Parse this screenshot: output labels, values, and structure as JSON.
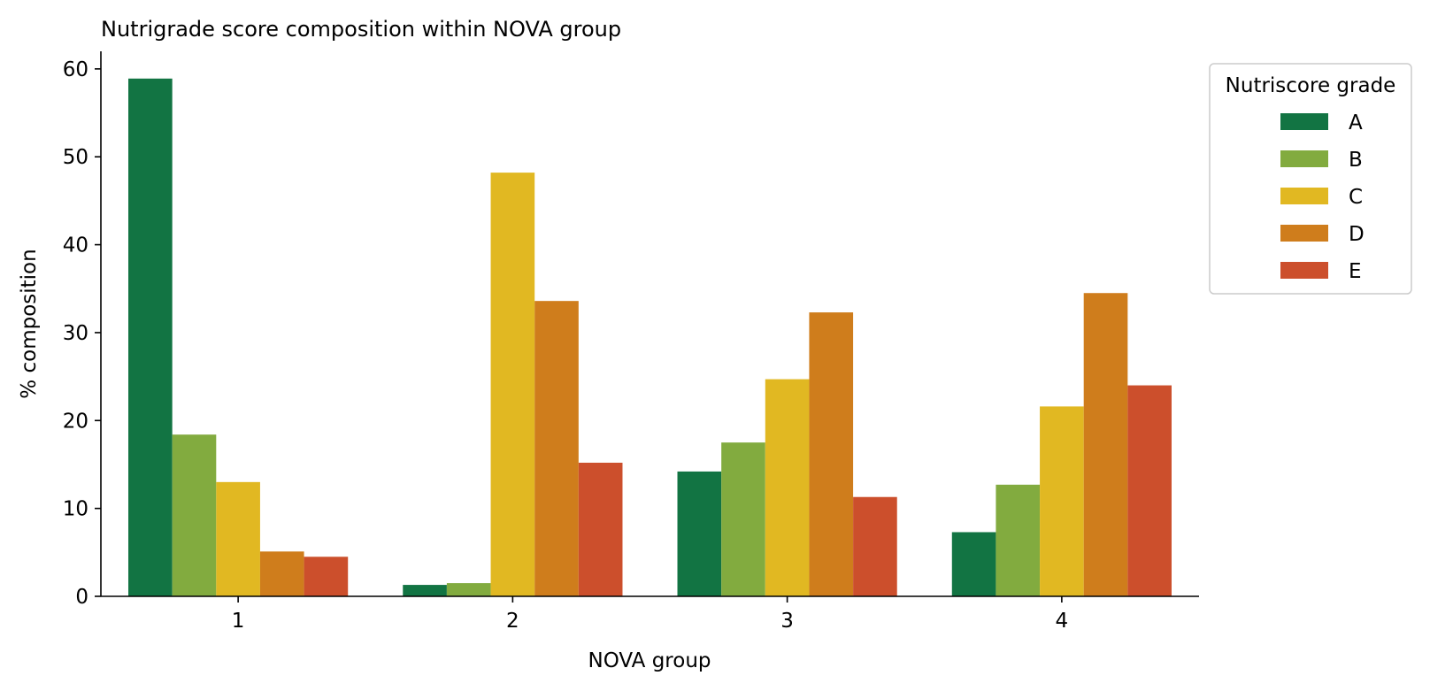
{
  "chart_data": {
    "type": "bar",
    "title": "Nutrigrade score composition within NOVA group",
    "xlabel": "NOVA group",
    "ylabel": "% composition",
    "categories": [
      "1",
      "2",
      "3",
      "4"
    ],
    "ylim": [
      0,
      62
    ],
    "yticks": [
      0,
      10,
      20,
      30,
      40,
      50,
      60
    ],
    "grid": false,
    "legend": {
      "title": "Nutriscore grade",
      "placement": "top-right-outside"
    },
    "series": [
      {
        "name": "A",
        "color": "#127443",
        "values": [
          58.9,
          1.3,
          14.2,
          7.3
        ]
      },
      {
        "name": "B",
        "color": "#82ab3f",
        "values": [
          18.4,
          1.5,
          17.5,
          12.7
        ]
      },
      {
        "name": "C",
        "color": "#e1b822",
        "values": [
          13.0,
          48.2,
          24.7,
          21.6
        ]
      },
      {
        "name": "D",
        "color": "#cf7d1c",
        "values": [
          5.1,
          33.6,
          32.3,
          34.5
        ]
      },
      {
        "name": "E",
        "color": "#cc4f2c",
        "values": [
          4.5,
          15.2,
          11.3,
          24.0
        ]
      }
    ]
  }
}
